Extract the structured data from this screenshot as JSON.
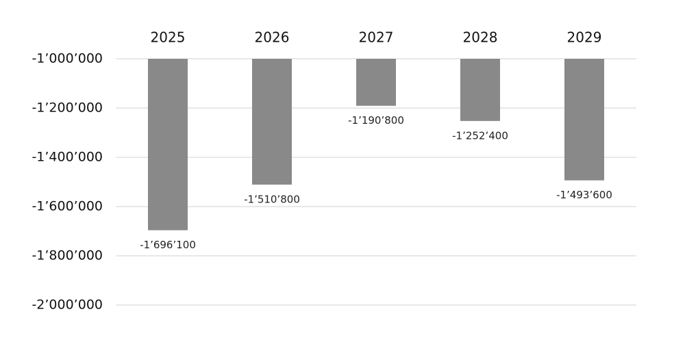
{
  "chart_data": {
    "type": "bar",
    "categories": [
      "2025",
      "2026",
      "2027",
      "2028",
      "2029"
    ],
    "values": [
      -1696100,
      -1510800,
      -1190800,
      -1252400,
      -1493600
    ],
    "value_labels": [
      "-1’696’100",
      "-1’510’800",
      "-1’190’800",
      "-1’252’400",
      "-1’493’600"
    ],
    "color": "#898989",
    "ylim": [
      -2000000,
      -1000000
    ],
    "yticks": [
      {
        "value": -1000000,
        "label": "-1’000’000"
      },
      {
        "value": -1200000,
        "label": "-1’200’000"
      },
      {
        "value": -1400000,
        "label": "-1’400’000"
      },
      {
        "value": -1600000,
        "label": "-1’600’000"
      },
      {
        "value": -1800000,
        "label": "-1’800’000"
      },
      {
        "value": -2000000,
        "label": "-2’000’000"
      }
    ],
    "grid": true
  }
}
